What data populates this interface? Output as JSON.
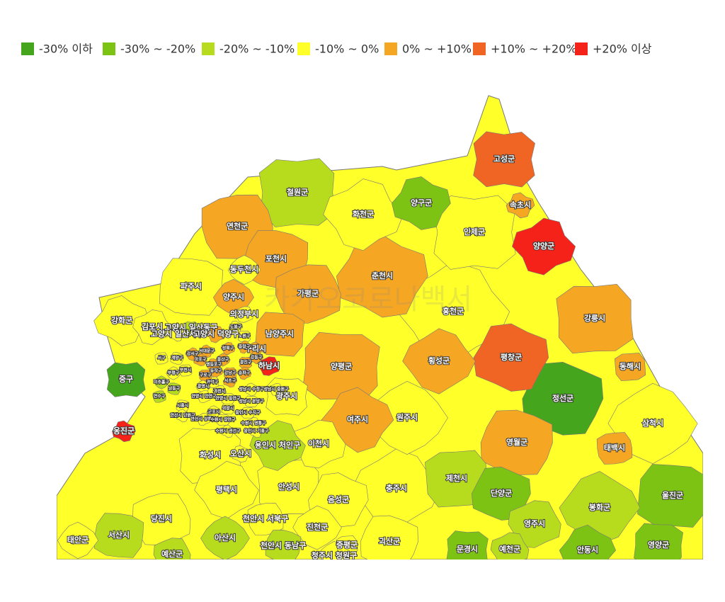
{
  "legend": [
    {
      "label": "-30% 이하",
      "color": "#45a51c"
    },
    {
      "label": "-30% ~ -20%",
      "color": "#7cc314"
    },
    {
      "label": "-20% ~ -10%",
      "color": "#b7dc1e"
    },
    {
      "label": "-10% ~ 0%",
      "color": "#ffff2a"
    },
    {
      "label": "0% ~ +10%",
      "color": "#f5a623"
    },
    {
      "label": "+10% ~ +20%",
      "color": "#f06424"
    },
    {
      "label": "+20% 이상",
      "color": "#f5221a"
    }
  ],
  "watermark": "카카오코로나백서",
  "regions": [
    {
      "name": "고성군",
      "class": 5
    },
    {
      "name": "속초시",
      "class": 4
    },
    {
      "name": "양양군",
      "class": 6
    },
    {
      "name": "인제군",
      "class": 3
    },
    {
      "name": "양구군",
      "class": 1
    },
    {
      "name": "화천군",
      "class": 3
    },
    {
      "name": "철원군",
      "class": 2
    },
    {
      "name": "춘천시",
      "class": 4
    },
    {
      "name": "홍천군",
      "class": 3
    },
    {
      "name": "강릉시",
      "class": 4
    },
    {
      "name": "평창군",
      "class": 5
    },
    {
      "name": "횡성군",
      "class": 4
    },
    {
      "name": "동해시",
      "class": 4
    },
    {
      "name": "정선군",
      "class": 0
    },
    {
      "name": "삼척시",
      "class": 3
    },
    {
      "name": "태백시",
      "class": 4
    },
    {
      "name": "영월군",
      "class": 4
    },
    {
      "name": "원주시",
      "class": 3
    },
    {
      "name": "연천군",
      "class": 4
    },
    {
      "name": "포천시",
      "class": 4
    },
    {
      "name": "동두천시",
      "class": 3
    },
    {
      "name": "가평군",
      "class": 4
    },
    {
      "name": "파주시",
      "class": 3
    },
    {
      "name": "양주시",
      "class": 4
    },
    {
      "name": "의정부시",
      "class": 3
    },
    {
      "name": "남양주시",
      "class": 4
    },
    {
      "name": "구리시",
      "class": 4
    },
    {
      "name": "하남시",
      "class": 6
    },
    {
      "name": "양평군",
      "class": 4
    },
    {
      "name": "여주시",
      "class": 4
    },
    {
      "name": "이천시",
      "class": 3
    },
    {
      "name": "광주시",
      "class": 3
    },
    {
      "name": "강화군",
      "class": 3
    },
    {
      "name": "김포시",
      "class": 3
    },
    {
      "name": "고양시 일산동구",
      "class": 2
    },
    {
      "name": "고양시 일산서구",
      "class": 3
    },
    {
      "name": "고양시 덕양구",
      "class": 4
    },
    {
      "name": "중구",
      "class": 0
    },
    {
      "name": "옹진군",
      "class": 6
    },
    {
      "name": "용인시 처인구",
      "class": 2
    },
    {
      "name": "화성시",
      "class": 3
    },
    {
      "name": "오산시",
      "class": 3
    },
    {
      "name": "평택시",
      "class": 3
    },
    {
      "name": "안성시",
      "class": 3
    },
    {
      "name": "음성군",
      "class": 3
    },
    {
      "name": "충주시",
      "class": 3
    },
    {
      "name": "제천시",
      "class": 2
    },
    {
      "name": "단양군",
      "class": 1
    },
    {
      "name": "진천군",
      "class": 3
    },
    {
      "name": "증평군",
      "class": 3
    },
    {
      "name": "괴산군",
      "class": 3
    },
    {
      "name": "청주시 청원구",
      "class": 3
    },
    {
      "name": "천안시 서북구",
      "class": 3
    },
    {
      "name": "천안시 동남구",
      "class": 2
    },
    {
      "name": "아산시",
      "class": 2
    },
    {
      "name": "당진시",
      "class": 3
    },
    {
      "name": "서산시",
      "class": 2
    },
    {
      "name": "태안군",
      "class": 3
    },
    {
      "name": "예산군",
      "class": 2
    },
    {
      "name": "울진군",
      "class": 1
    },
    {
      "name": "봉화군",
      "class": 2
    },
    {
      "name": "영주시",
      "class": 2
    },
    {
      "name": "영양군",
      "class": 1
    },
    {
      "name": "안동시",
      "class": 1
    },
    {
      "name": "예천군",
      "class": 2
    },
    {
      "name": "문경시",
      "class": 1
    },
    {
      "name": "서대문구",
      "class": 4
    },
    {
      "name": "성북구",
      "class": 4
    },
    {
      "name": "노원구",
      "class": 3
    },
    {
      "name": "도봉구",
      "class": 3
    },
    {
      "name": "중랑구",
      "class": 4
    },
    {
      "name": "광진구",
      "class": 4
    },
    {
      "name": "강동구",
      "class": 4
    },
    {
      "name": "송파구",
      "class": 4
    },
    {
      "name": "강남구",
      "class": 4
    },
    {
      "name": "서초구",
      "class": 4
    },
    {
      "name": "동작구",
      "class": 4
    },
    {
      "name": "관악구",
      "class": 3
    },
    {
      "name": "마포구",
      "class": 4
    },
    {
      "name": "강서구",
      "class": 4
    },
    {
      "name": "구로구",
      "class": 4
    },
    {
      "name": "영등포구",
      "class": 4
    },
    {
      "name": "용산구",
      "class": 4
    },
    {
      "name": "부천시",
      "class": 3
    },
    {
      "name": "계양구",
      "class": 3
    },
    {
      "name": "부평구",
      "class": 3
    },
    {
      "name": "서구",
      "class": 3
    },
    {
      "name": "남동구",
      "class": 2
    },
    {
      "name": "미추홀구",
      "class": 2
    },
    {
      "name": "연수구",
      "class": 2
    },
    {
      "name": "시흥시",
      "class": 3
    },
    {
      "name": "광명시",
      "class": 3
    },
    {
      "name": "과천시",
      "class": 3
    },
    {
      "name": "의왕시",
      "class": 3
    },
    {
      "name": "군포시",
      "class": 3
    },
    {
      "name": "안양시 만안구",
      "class": 3
    },
    {
      "name": "안양시 동안구",
      "class": 3
    },
    {
      "name": "성남시 수정구",
      "class": 3
    },
    {
      "name": "성남시 중원구",
      "class": 3
    },
    {
      "name": "성남시 분당구",
      "class": 3
    },
    {
      "name": "안산시 단원구",
      "class": 3
    },
    {
      "name": "안산시 상록구",
      "class": 3
    },
    {
      "name": "수원시 장안구",
      "class": 3
    },
    {
      "name": "수원시 권선구",
      "class": 3
    },
    {
      "name": "수원시 영통구",
      "class": 3
    },
    {
      "name": "용인시 수지구",
      "class": 3
    },
    {
      "name": "용인시 기흥구",
      "class": 3
    }
  ]
}
